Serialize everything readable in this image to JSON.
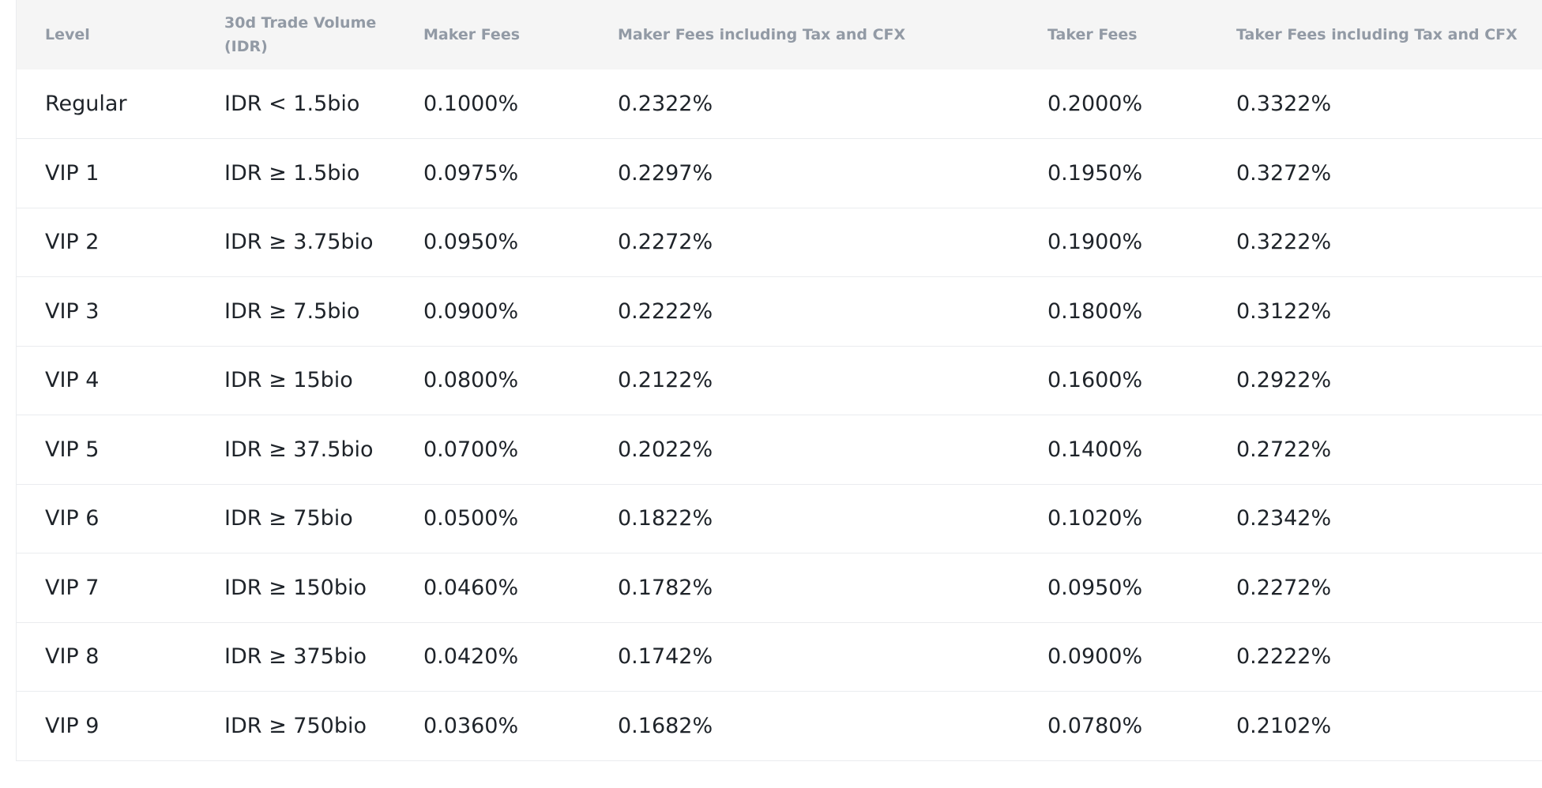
{
  "table": {
    "headers": {
      "level": "Level",
      "volume": "30d Trade Volume (IDR)",
      "maker": "Maker Fees",
      "maker_tax": "Maker Fees including Tax and CFX",
      "taker": "Taker Fees",
      "taker_tax": "Taker Fees including Tax and CFX"
    },
    "rows": [
      {
        "level": "Regular",
        "volume": "IDR < 1.5bio",
        "maker": "0.1000%",
        "maker_tax": "0.2322%",
        "taker": "0.2000%",
        "taker_tax": "0.3322%"
      },
      {
        "level": "VIP 1",
        "volume": "IDR ≥ 1.5bio",
        "maker": "0.0975%",
        "maker_tax": "0.2297%",
        "taker": "0.1950%",
        "taker_tax": "0.3272%"
      },
      {
        "level": "VIP 2",
        "volume": "IDR ≥ 3.75bio",
        "maker": "0.0950%",
        "maker_tax": "0.2272%",
        "taker": "0.1900%",
        "taker_tax": "0.3222%"
      },
      {
        "level": "VIP 3",
        "volume": "IDR ≥ 7.5bio",
        "maker": "0.0900%",
        "maker_tax": "0.2222%",
        "taker": "0.1800%",
        "taker_tax": "0.3122%"
      },
      {
        "level": "VIP 4",
        "volume": "IDR ≥ 15bio",
        "maker": "0.0800%",
        "maker_tax": "0.2122%",
        "taker": "0.1600%",
        "taker_tax": "0.2922%"
      },
      {
        "level": "VIP 5",
        "volume": "IDR ≥ 37.5bio",
        "maker": "0.0700%",
        "maker_tax": "0.2022%",
        "taker": "0.1400%",
        "taker_tax": "0.2722%"
      },
      {
        "level": "VIP 6",
        "volume": "IDR ≥ 75bio",
        "maker": "0.0500%",
        "maker_tax": "0.1822%",
        "taker": "0.1020%",
        "taker_tax": "0.2342%"
      },
      {
        "level": "VIP 7",
        "volume": "IDR ≥ 150bio",
        "maker": "0.0460%",
        "maker_tax": "0.1782%",
        "taker": "0.0950%",
        "taker_tax": "0.2272%"
      },
      {
        "level": "VIP 8",
        "volume": "IDR ≥ 375bio",
        "maker": "0.0420%",
        "maker_tax": "0.1742%",
        "taker": "0.0900%",
        "taker_tax": "0.2222%"
      },
      {
        "level": "VIP 9",
        "volume": "IDR ≥ 750bio",
        "maker": "0.0360%",
        "maker_tax": "0.1682%",
        "taker": "0.0780%",
        "taker_tax": "0.2102%"
      }
    ]
  }
}
